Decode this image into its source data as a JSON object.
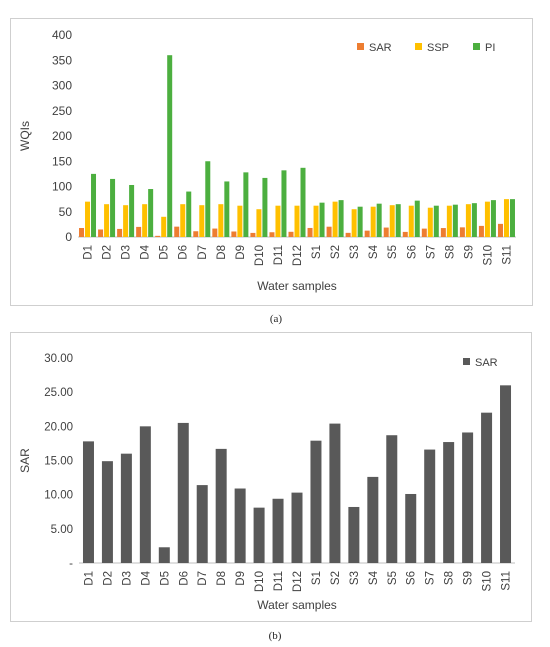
{
  "captions": {
    "a": "(a)",
    "b": "(b)"
  },
  "chart_data": [
    {
      "type": "bar",
      "categories": [
        "D1",
        "D2",
        "D3",
        "D4",
        "D5",
        "D6",
        "D7",
        "D8",
        "D9",
        "D10",
        "D11",
        "D12",
        "S1",
        "S2",
        "S3",
        "S4",
        "S5",
        "S6",
        "S7",
        "S8",
        "S9",
        "S10",
        "S11"
      ],
      "series": [
        {
          "name": "SAR",
          "color": "#ED7D31",
          "values": [
            17.8,
            14.9,
            16.0,
            20.0,
            2.3,
            20.5,
            11.4,
            16.7,
            10.9,
            8.1,
            9.4,
            10.3,
            17.9,
            20.4,
            8.2,
            12.6,
            18.7,
            10.1,
            16.6,
            17.7,
            19.1,
            22.0,
            26.0
          ]
        },
        {
          "name": "SSP",
          "color": "#FFC000",
          "values": [
            70,
            65,
            63,
            65,
            40,
            65,
            63,
            65,
            62,
            55,
            62,
            62,
            62,
            70,
            55,
            60,
            63,
            62,
            58,
            62,
            65,
            70,
            75
          ]
        },
        {
          "name": "PI",
          "color": "#4CAF3F",
          "values": [
            125,
            115,
            103,
            95,
            360,
            90,
            150,
            110,
            128,
            117,
            132,
            137,
            68,
            73,
            60,
            66,
            65,
            72,
            62,
            64,
            67,
            73,
            75
          ]
        }
      ],
      "xlabel": "Water samples",
      "ylabel": "WQIs",
      "ylim": [
        0,
        400
      ],
      "yticks": [
        "0",
        "50",
        "100",
        "150",
        "200",
        "250",
        "300",
        "350",
        "400"
      ],
      "legend": "top-right",
      "grid": false
    },
    {
      "type": "bar",
      "categories": [
        "D1",
        "D2",
        "D3",
        "D4",
        "D5",
        "D6",
        "D7",
        "D8",
        "D9",
        "D10",
        "D11",
        "D12",
        "S1",
        "S2",
        "S3",
        "S4",
        "S5",
        "S6",
        "S7",
        "S8",
        "S9",
        "S10",
        "S11"
      ],
      "series": [
        {
          "name": "SAR",
          "color": "#595959",
          "values": [
            17.8,
            14.9,
            16.0,
            20.0,
            2.3,
            20.5,
            11.4,
            16.7,
            10.9,
            8.1,
            9.4,
            10.3,
            17.9,
            20.4,
            8.2,
            12.6,
            18.7,
            10.1,
            16.6,
            17.7,
            19.1,
            22.0,
            26.0
          ]
        }
      ],
      "xlabel": "Water samples",
      "ylabel": "SAR",
      "ylim": [
        0,
        30
      ],
      "yticks": [
        "-",
        "5.00",
        "10.00",
        "15.00",
        "20.00",
        "25.00",
        "30.00"
      ],
      "legend": "top-right",
      "grid": false
    }
  ]
}
